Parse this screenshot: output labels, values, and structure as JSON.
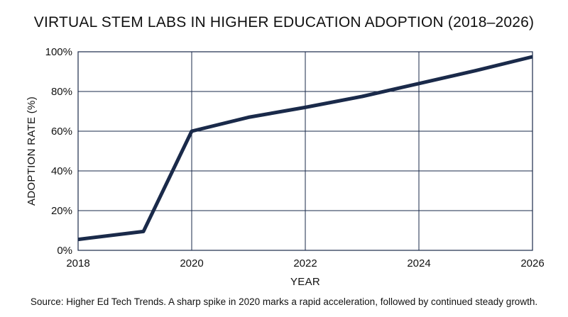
{
  "chart_data": {
    "type": "line",
    "title": "VIRTUAL STEM LABS IN HIGHER EDUCATION ADOPTION (2018–2026)",
    "xlabel": "YEAR",
    "ylabel": "ADOPTION RATE (%)",
    "xlim": [
      2018,
      2026
    ],
    "ylim": [
      0,
      100
    ],
    "x_ticks": [
      2018,
      2020,
      2022,
      2024,
      2026
    ],
    "x_tick_labels": [
      "2018",
      "2020",
      "2022",
      "2024",
      "2026"
    ],
    "y_ticks": [
      0,
      20,
      40,
      60,
      80,
      100
    ],
    "y_tick_labels": [
      "0%",
      "20%",
      "40%",
      "60%",
      "80%",
      "100%"
    ],
    "grid": true,
    "series": [
      {
        "x": [
          2018,
          2019.15,
          2020,
          2021,
          2022,
          2023,
          2024,
          2025,
          2026
        ],
        "y": [
          5.5,
          9.5,
          60,
          67,
          72,
          77.5,
          84,
          90.5,
          97.5
        ],
        "color": "#1a2a4a"
      }
    ],
    "caption": "Source: Higher Ed Tech Trends. A sharp spike in 2020 marks a rapid acceleration, followed by continued steady growth."
  }
}
